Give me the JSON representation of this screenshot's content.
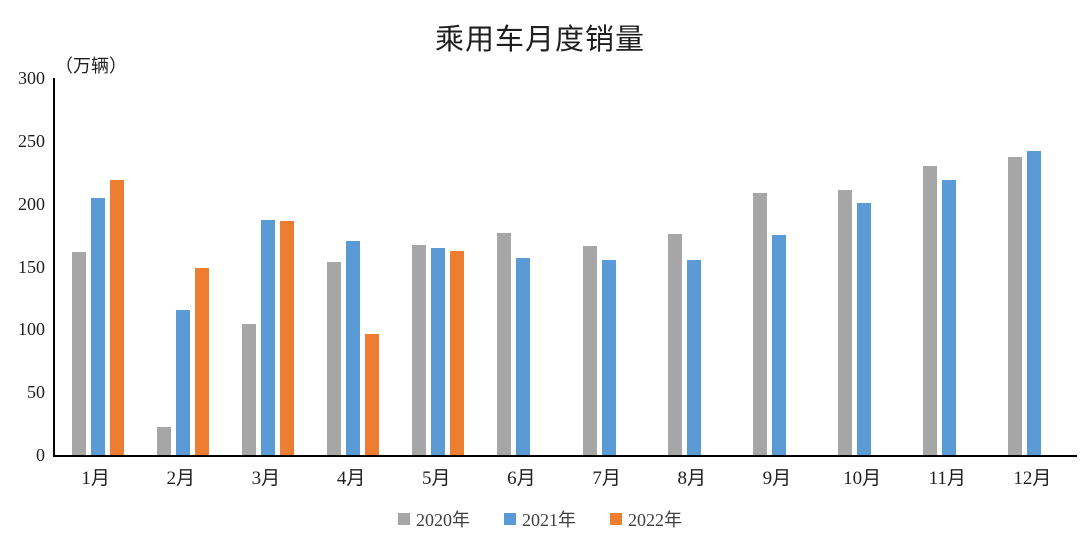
{
  "chart_data": {
    "type": "bar",
    "title": "乘用车月度销量",
    "ylabel": "（万辆）",
    "categories": [
      "1月",
      "2月",
      "3月",
      "4月",
      "5月",
      "6月",
      "7月",
      "8月",
      "9月",
      "10月",
      "11月",
      "12月"
    ],
    "series": [
      {
        "name": "2020年",
        "color": "#A6A6A6",
        "values": [
          161.4,
          22.4,
          104.5,
          153.6,
          167.4,
          176.4,
          166.5,
          175.5,
          208.8,
          211.0,
          229.7,
          237.5
        ]
      },
      {
        "name": "2021年",
        "color": "#5B9BD5",
        "values": [
          204.5,
          115.6,
          187.4,
          170.4,
          164.6,
          156.9,
          155.1,
          155.2,
          175.1,
          200.7,
          219.2,
          242.2
        ]
      },
      {
        "name": "2022年",
        "color": "#ED7D31",
        "values": [
          218.6,
          148.7,
          186.4,
          96.5,
          162.3,
          null,
          null,
          null,
          null,
          null,
          null,
          null
        ]
      }
    ],
    "ylim": [
      0,
      300
    ],
    "ytick_step": 50,
    "grid": false,
    "legend_position": "bottom",
    "axis_color": "#000000"
  }
}
